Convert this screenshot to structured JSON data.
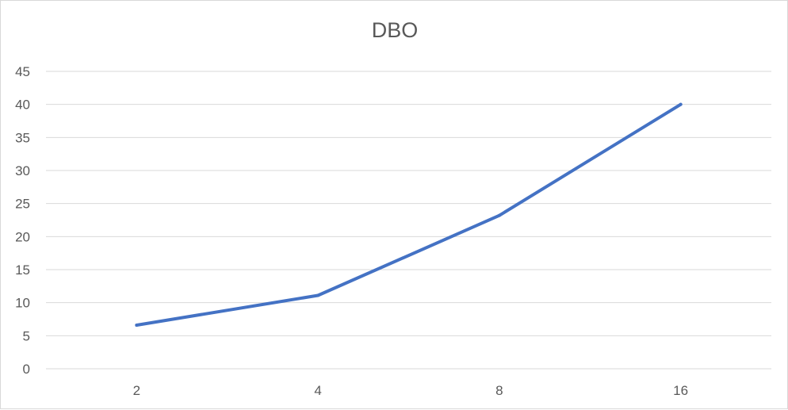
{
  "chart_data": {
    "type": "line",
    "title": "DBO",
    "categories": [
      "2",
      "4",
      "8",
      "16"
    ],
    "series": [
      {
        "values": [
          6.6,
          11.1,
          23.2,
          40.0
        ]
      }
    ],
    "ylim": [
      0,
      45
    ],
    "yticks": [
      0,
      5,
      10,
      15,
      20,
      25,
      30,
      35,
      40,
      45
    ],
    "grid": true,
    "legend": "none",
    "xlabel": "",
    "ylabel": "",
    "colors": {
      "line": "#4472c4",
      "grid": "#d9d9d9",
      "text": "#595959"
    }
  }
}
